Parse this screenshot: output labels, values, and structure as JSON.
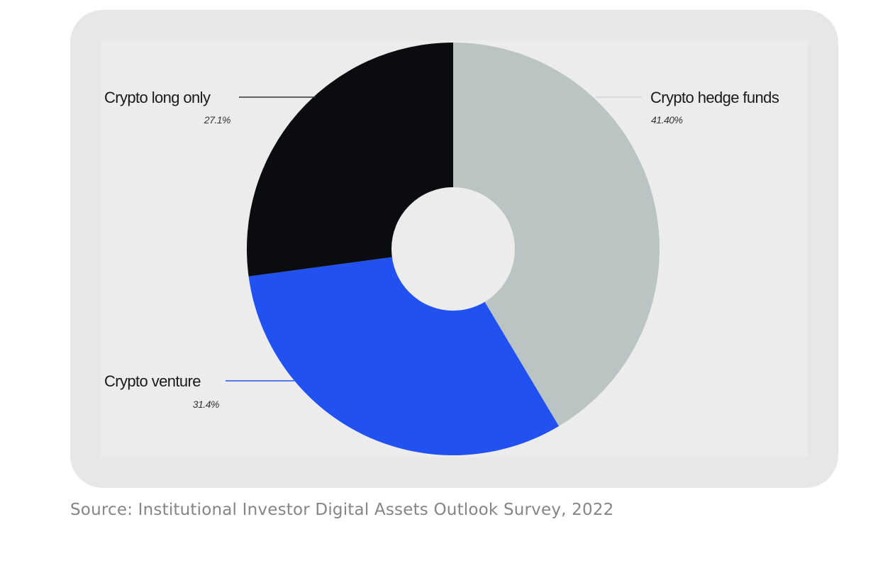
{
  "chart_data": {
    "type": "pie",
    "donut": true,
    "slices": [
      {
        "label": "Crypto hedge funds",
        "value_label": "41.40%",
        "value": 41.4,
        "color": "#bac5c3"
      },
      {
        "label": "Crypto venture",
        "value_label": "31.4%",
        "value": 31.4,
        "color": "#2251f2"
      },
      {
        "label": "Crypto long only",
        "value_label": "27.1%",
        "value": 27.1,
        "color": "#0b0c0f"
      }
    ],
    "leader_line_colors": [
      "#d4d4d4",
      "#2251f2",
      "#333333"
    ]
  },
  "source_text": "Source: Institutional Investor Digital Assets Outlook Survey, 2022"
}
